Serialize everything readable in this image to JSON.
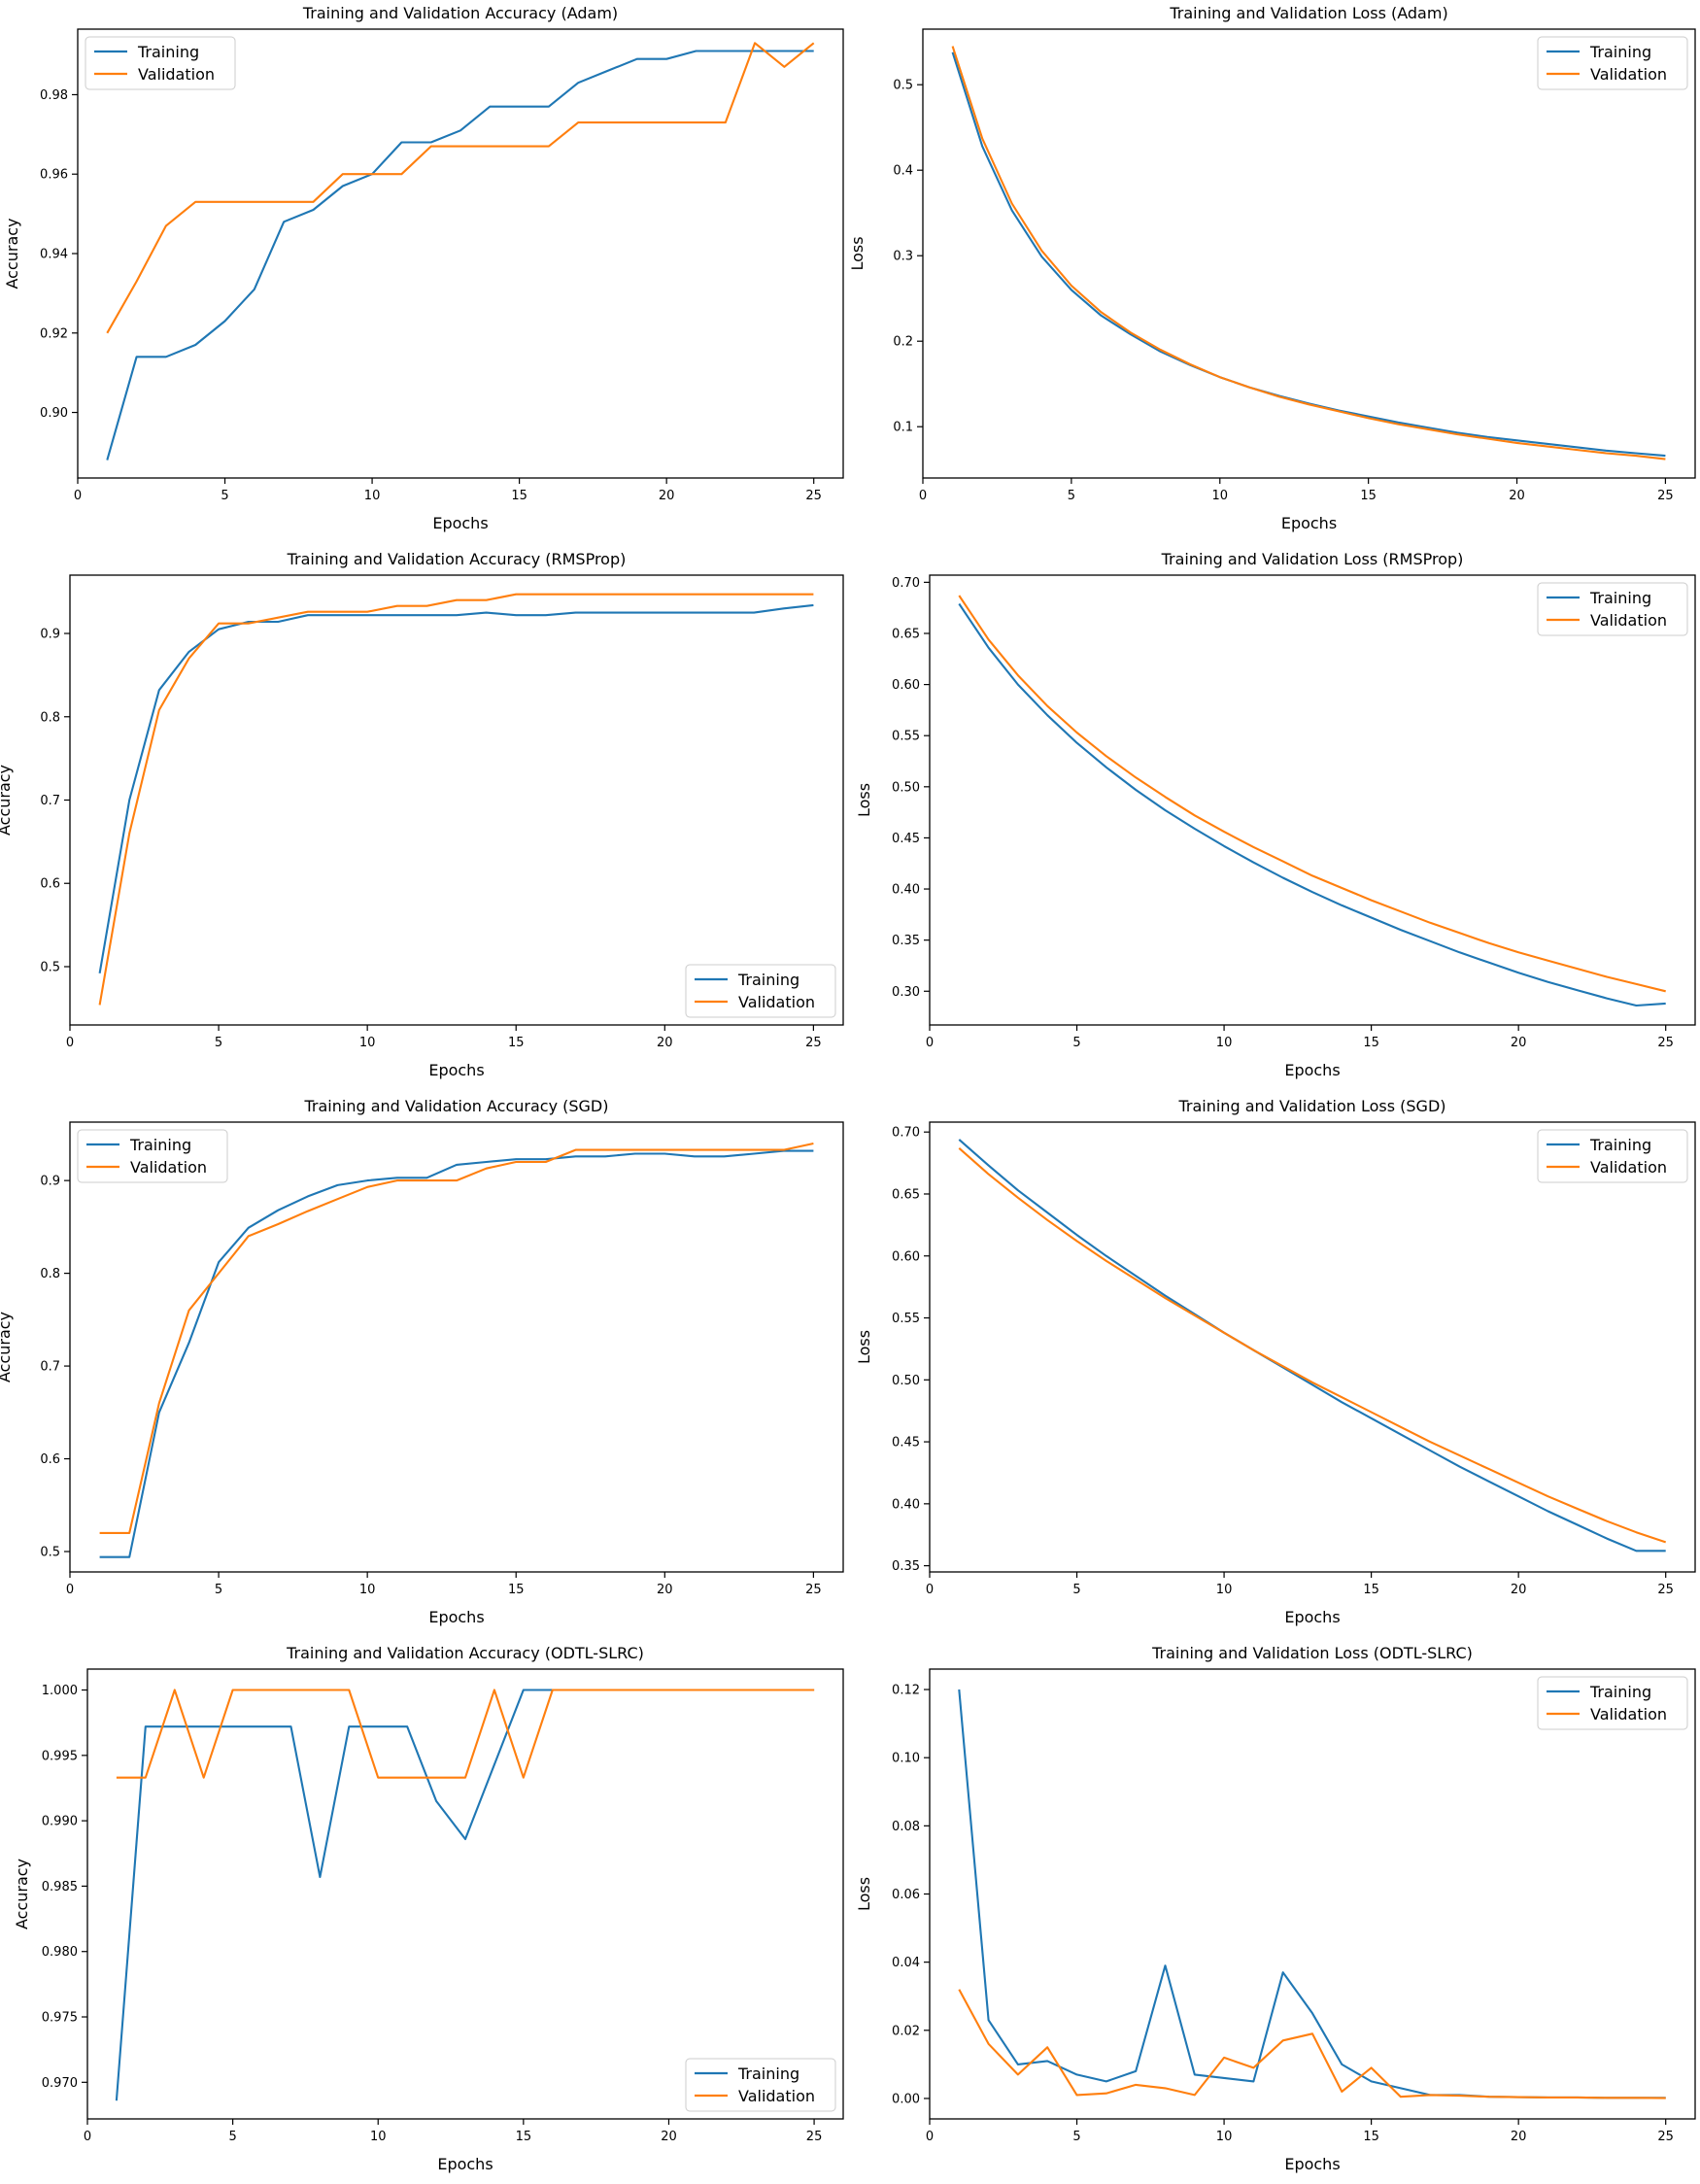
{
  "colors": {
    "training": "#1f77b4",
    "validation": "#ff7f0e",
    "axis": "#000000"
  },
  "chart_data": [
    {
      "type": "line",
      "title": "Training and Validation Accuracy (Adam)",
      "xlabel": "Epochs",
      "ylabel": "Accuracy",
      "xlim": [
        0,
        26
      ],
      "ylim": [
        0.8835,
        0.9965
      ],
      "xticks": [
        0,
        5,
        10,
        15,
        20,
        25
      ],
      "yticks": [
        0.9,
        0.92,
        0.94,
        0.96,
        0.98
      ],
      "ytick_labels": [
        "0.90",
        "0.92",
        "0.94",
        "0.96",
        "0.98"
      ],
      "legend": "upper-left",
      "x": [
        1,
        2,
        3,
        4,
        5,
        6,
        7,
        8,
        9,
        10,
        11,
        12,
        13,
        14,
        15,
        16,
        17,
        18,
        19,
        20,
        21,
        22,
        23,
        24,
        25
      ],
      "series": [
        {
          "name": "Training",
          "values": [
            0.888,
            0.914,
            0.914,
            0.917,
            0.923,
            0.931,
            0.948,
            0.951,
            0.957,
            0.96,
            0.968,
            0.968,
            0.971,
            0.977,
            0.977,
            0.977,
            0.983,
            0.986,
            0.989,
            0.989,
            0.991,
            0.991,
            0.991,
            0.991,
            0.991
          ]
        },
        {
          "name": "Validation",
          "values": [
            0.92,
            0.933,
            0.947,
            0.953,
            0.953,
            0.953,
            0.953,
            0.953,
            0.96,
            0.96,
            0.96,
            0.967,
            0.967,
            0.967,
            0.967,
            0.967,
            0.973,
            0.973,
            0.973,
            0.973,
            0.973,
            0.973,
            0.993,
            0.987,
            0.993
          ]
        }
      ]
    },
    {
      "type": "line",
      "title": "Training and Validation Loss  (Adam)",
      "xlabel": "Epochs",
      "ylabel": "Loss",
      "xlim": [
        0,
        26
      ],
      "ylim": [
        0.04,
        0.565
      ],
      "xticks": [
        0,
        5,
        10,
        15,
        20,
        25
      ],
      "yticks": [
        0.1,
        0.2,
        0.3,
        0.4,
        0.5
      ],
      "ytick_labels": [
        "0.1",
        "0.2",
        "0.3",
        "0.4",
        "0.5"
      ],
      "legend": "upper-right",
      "x": [
        1,
        2,
        3,
        4,
        5,
        6,
        7,
        8,
        9,
        10,
        11,
        12,
        13,
        14,
        15,
        16,
        17,
        18,
        19,
        20,
        21,
        22,
        23,
        24,
        25
      ],
      "series": [
        {
          "name": "Training",
          "values": [
            0.538,
            0.428,
            0.353,
            0.299,
            0.26,
            0.23,
            0.208,
            0.188,
            0.172,
            0.158,
            0.146,
            0.136,
            0.127,
            0.119,
            0.112,
            0.105,
            0.099,
            0.093,
            0.088,
            0.084,
            0.08,
            0.076,
            0.072,
            0.069,
            0.066
          ]
        },
        {
          "name": "Validation",
          "values": [
            0.545,
            0.437,
            0.361,
            0.306,
            0.265,
            0.234,
            0.21,
            0.19,
            0.173,
            0.158,
            0.146,
            0.135,
            0.126,
            0.118,
            0.11,
            0.103,
            0.097,
            0.091,
            0.086,
            0.081,
            0.077,
            0.073,
            0.069,
            0.066,
            0.062
          ]
        }
      ]
    },
    {
      "type": "line",
      "title": "Training and Validation Accuracy (RMSProp)",
      "xlabel": "Epochs",
      "ylabel": "Accuracy",
      "xlim": [
        0,
        26
      ],
      "ylim": [
        0.43,
        0.97
      ],
      "xticks": [
        0,
        5,
        10,
        15,
        20,
        25
      ],
      "yticks": [
        0.5,
        0.6,
        0.7,
        0.8,
        0.9
      ],
      "ytick_labels": [
        "0.5",
        "0.6",
        "0.7",
        "0.8",
        "0.9"
      ],
      "legend": "lower-right",
      "x": [
        1,
        2,
        3,
        4,
        5,
        6,
        7,
        8,
        9,
        10,
        11,
        12,
        13,
        14,
        15,
        16,
        17,
        18,
        19,
        20,
        21,
        22,
        23,
        24,
        25
      ],
      "series": [
        {
          "name": "Training",
          "values": [
            0.492,
            0.7,
            0.832,
            0.878,
            0.905,
            0.914,
            0.914,
            0.922,
            0.922,
            0.922,
            0.922,
            0.922,
            0.922,
            0.925,
            0.922,
            0.922,
            0.925,
            0.925,
            0.925,
            0.925,
            0.925,
            0.925,
            0.925,
            0.93,
            0.934
          ]
        },
        {
          "name": "Validation",
          "values": [
            0.454,
            0.66,
            0.808,
            0.87,
            0.912,
            0.912,
            0.919,
            0.926,
            0.926,
            0.926,
            0.933,
            0.933,
            0.94,
            0.94,
            0.947,
            0.947,
            0.947,
            0.947,
            0.947,
            0.947,
            0.947,
            0.947,
            0.947,
            0.947,
            0.947
          ]
        }
      ]
    },
    {
      "type": "line",
      "title": "Training and Validation Loss (RMSProp)",
      "xlabel": "Epochs",
      "ylabel": "Loss",
      "xlim": [
        0,
        26
      ],
      "ylim": [
        0.267,
        0.707
      ],
      "xticks": [
        0,
        5,
        10,
        15,
        20,
        25
      ],
      "yticks": [
        0.3,
        0.35,
        0.4,
        0.45,
        0.5,
        0.55,
        0.6,
        0.65,
        0.7
      ],
      "ytick_labels": [
        "0.30",
        "0.35",
        "0.40",
        "0.45",
        "0.50",
        "0.55",
        "0.60",
        "0.65",
        "0.70"
      ],
      "legend": "upper-right",
      "x": [
        1,
        2,
        3,
        4,
        5,
        6,
        7,
        8,
        9,
        10,
        11,
        12,
        13,
        14,
        15,
        16,
        17,
        18,
        19,
        20,
        21,
        22,
        23,
        24,
        25
      ],
      "series": [
        {
          "name": "Training",
          "values": [
            0.679,
            0.636,
            0.6,
            0.57,
            0.543,
            0.519,
            0.497,
            0.477,
            0.459,
            0.442,
            0.426,
            0.411,
            0.397,
            0.384,
            0.372,
            0.36,
            0.349,
            0.338,
            0.328,
            0.318,
            0.309,
            0.301,
            0.293,
            0.286,
            0.288
          ]
        },
        {
          "name": "Validation",
          "values": [
            0.687,
            0.644,
            0.609,
            0.579,
            0.553,
            0.53,
            0.509,
            0.49,
            0.472,
            0.456,
            0.441,
            0.427,
            0.413,
            0.401,
            0.389,
            0.378,
            0.367,
            0.357,
            0.347,
            0.338,
            0.33,
            0.322,
            0.314,
            0.307,
            0.3
          ]
        }
      ]
    },
    {
      "type": "line",
      "title": "Training and Validation Accuracy (SGD)",
      "xlabel": "Epochs",
      "ylabel": "Accuracy",
      "xlim": [
        0,
        26
      ],
      "ylim": [
        0.478,
        0.963
      ],
      "xticks": [
        0,
        5,
        10,
        15,
        20,
        25
      ],
      "yticks": [
        0.5,
        0.6,
        0.7,
        0.8,
        0.9
      ],
      "ytick_labels": [
        "0.5",
        "0.6",
        "0.7",
        "0.8",
        "0.9"
      ],
      "legend": "upper-left",
      "x": [
        1,
        2,
        3,
        4,
        5,
        6,
        7,
        8,
        9,
        10,
        11,
        12,
        13,
        14,
        15,
        16,
        17,
        18,
        19,
        20,
        21,
        22,
        23,
        24,
        25
      ],
      "series": [
        {
          "name": "Training",
          "values": [
            0.494,
            0.494,
            0.65,
            0.725,
            0.812,
            0.849,
            0.868,
            0.883,
            0.895,
            0.9,
            0.903,
            0.903,
            0.917,
            0.92,
            0.923,
            0.923,
            0.926,
            0.926,
            0.929,
            0.929,
            0.926,
            0.926,
            0.929,
            0.932,
            0.932
          ]
        },
        {
          "name": "Validation",
          "values": [
            0.52,
            0.52,
            0.66,
            0.76,
            0.8,
            0.84,
            0.853,
            0.867,
            0.88,
            0.893,
            0.9,
            0.9,
            0.9,
            0.913,
            0.92,
            0.92,
            0.933,
            0.933,
            0.933,
            0.933,
            0.933,
            0.933,
            0.933,
            0.933,
            0.94
          ]
        }
      ]
    },
    {
      "type": "line",
      "title": "Training and Validation Loss (SGD)",
      "xlabel": "Epochs",
      "ylabel": "Loss",
      "xlim": [
        0,
        26
      ],
      "ylim": [
        0.345,
        0.708
      ],
      "xticks": [
        0,
        5,
        10,
        15,
        20,
        25
      ],
      "yticks": [
        0.35,
        0.4,
        0.45,
        0.5,
        0.55,
        0.6,
        0.65,
        0.7
      ],
      "ytick_labels": [
        "0.35",
        "0.40",
        "0.45",
        "0.50",
        "0.55",
        "0.60",
        "0.65",
        "0.70"
      ],
      "legend": "upper-right",
      "x": [
        1,
        2,
        3,
        4,
        5,
        6,
        7,
        8,
        9,
        10,
        11,
        12,
        13,
        14,
        15,
        16,
        17,
        18,
        19,
        20,
        21,
        22,
        23,
        24,
        25
      ],
      "series": [
        {
          "name": "Training",
          "values": [
            0.694,
            0.673,
            0.653,
            0.635,
            0.617,
            0.6,
            0.584,
            0.568,
            0.553,
            0.538,
            0.524,
            0.51,
            0.496,
            0.482,
            0.469,
            0.456,
            0.443,
            0.43,
            0.418,
            0.406,
            0.394,
            0.383,
            0.372,
            0.362,
            0.362
          ]
        },
        {
          "name": "Validation",
          "values": [
            0.687,
            0.666,
            0.647,
            0.629,
            0.612,
            0.596,
            0.581,
            0.566,
            0.552,
            0.538,
            0.524,
            0.511,
            0.498,
            0.486,
            0.474,
            0.462,
            0.45,
            0.439,
            0.428,
            0.417,
            0.406,
            0.396,
            0.386,
            0.377,
            0.369
          ]
        }
      ]
    },
    {
      "type": "line",
      "title": "Training and Validation Accuracy  (ODTL-SLRC)",
      "xlabel": "Epochs",
      "ylabel": "Accuracy",
      "xlim": [
        0,
        26
      ],
      "ylim": [
        0.9672,
        1.0016
      ],
      "xticks": [
        0,
        5,
        10,
        15,
        20,
        25
      ],
      "yticks": [
        0.97,
        0.975,
        0.98,
        0.985,
        0.99,
        0.995,
        1.0
      ],
      "ytick_labels": [
        "0.970",
        "0.975",
        "0.980",
        "0.985",
        "0.990",
        "0.995",
        "1.000"
      ],
      "legend": "lower-right",
      "x": [
        1,
        2,
        3,
        4,
        5,
        6,
        7,
        8,
        9,
        10,
        11,
        12,
        13,
        14,
        15,
        16,
        17,
        18,
        19,
        20,
        21,
        22,
        23,
        24,
        25
      ],
      "series": [
        {
          "name": "Training",
          "values": [
            0.9686,
            0.9972,
            0.9972,
            0.9972,
            0.9972,
            0.9972,
            0.9972,
            0.9857,
            0.9972,
            0.9972,
            0.9972,
            0.9915,
            0.9886,
            0.9943,
            1.0,
            1.0,
            1.0,
            1.0,
            1.0,
            1.0,
            1.0,
            1.0,
            1.0,
            1.0,
            1.0
          ]
        },
        {
          "name": "Validation",
          "values": [
            0.9933,
            0.9933,
            1.0,
            0.9933,
            1.0,
            1.0,
            1.0,
            1.0,
            1.0,
            0.9933,
            0.9933,
            0.9933,
            0.9933,
            1.0,
            0.9933,
            1.0,
            1.0,
            1.0,
            1.0,
            1.0,
            1.0,
            1.0,
            1.0,
            1.0,
            1.0
          ]
        }
      ]
    },
    {
      "type": "line",
      "title": "Training and Validation Loss (ODTL-SLRC)",
      "xlabel": "Epochs",
      "ylabel": "Loss",
      "xlim": [
        0,
        26
      ],
      "ylim": [
        -0.006,
        0.126
      ],
      "xticks": [
        0,
        5,
        10,
        15,
        20,
        25
      ],
      "yticks": [
        0.0,
        0.02,
        0.04,
        0.06,
        0.08,
        0.1,
        0.12
      ],
      "ytick_labels": [
        "0.00",
        "0.02",
        "0.04",
        "0.06",
        "0.08",
        "0.10",
        "0.12"
      ],
      "legend": "upper-right",
      "x": [
        1,
        2,
        3,
        4,
        5,
        6,
        7,
        8,
        9,
        10,
        11,
        12,
        13,
        14,
        15,
        16,
        17,
        18,
        19,
        20,
        21,
        22,
        23,
        24,
        25
      ],
      "series": [
        {
          "name": "Training",
          "values": [
            0.12,
            0.023,
            0.01,
            0.011,
            0.007,
            0.005,
            0.008,
            0.039,
            0.007,
            0.006,
            0.005,
            0.037,
            0.025,
            0.01,
            0.005,
            0.003,
            0.001,
            0.001,
            0.0005,
            0.0004,
            0.0003,
            0.0003,
            0.0002,
            0.0002,
            0.0002
          ]
        },
        {
          "name": "Validation",
          "values": [
            0.032,
            0.016,
            0.007,
            0.015,
            0.001,
            0.0015,
            0.004,
            0.003,
            0.001,
            0.012,
            0.009,
            0.017,
            0.019,
            0.002,
            0.009,
            0.0005,
            0.001,
            0.0008,
            0.0005,
            0.0004,
            0.0003,
            0.0003,
            0.0002,
            0.0002,
            0.0001
          ]
        }
      ]
    }
  ]
}
